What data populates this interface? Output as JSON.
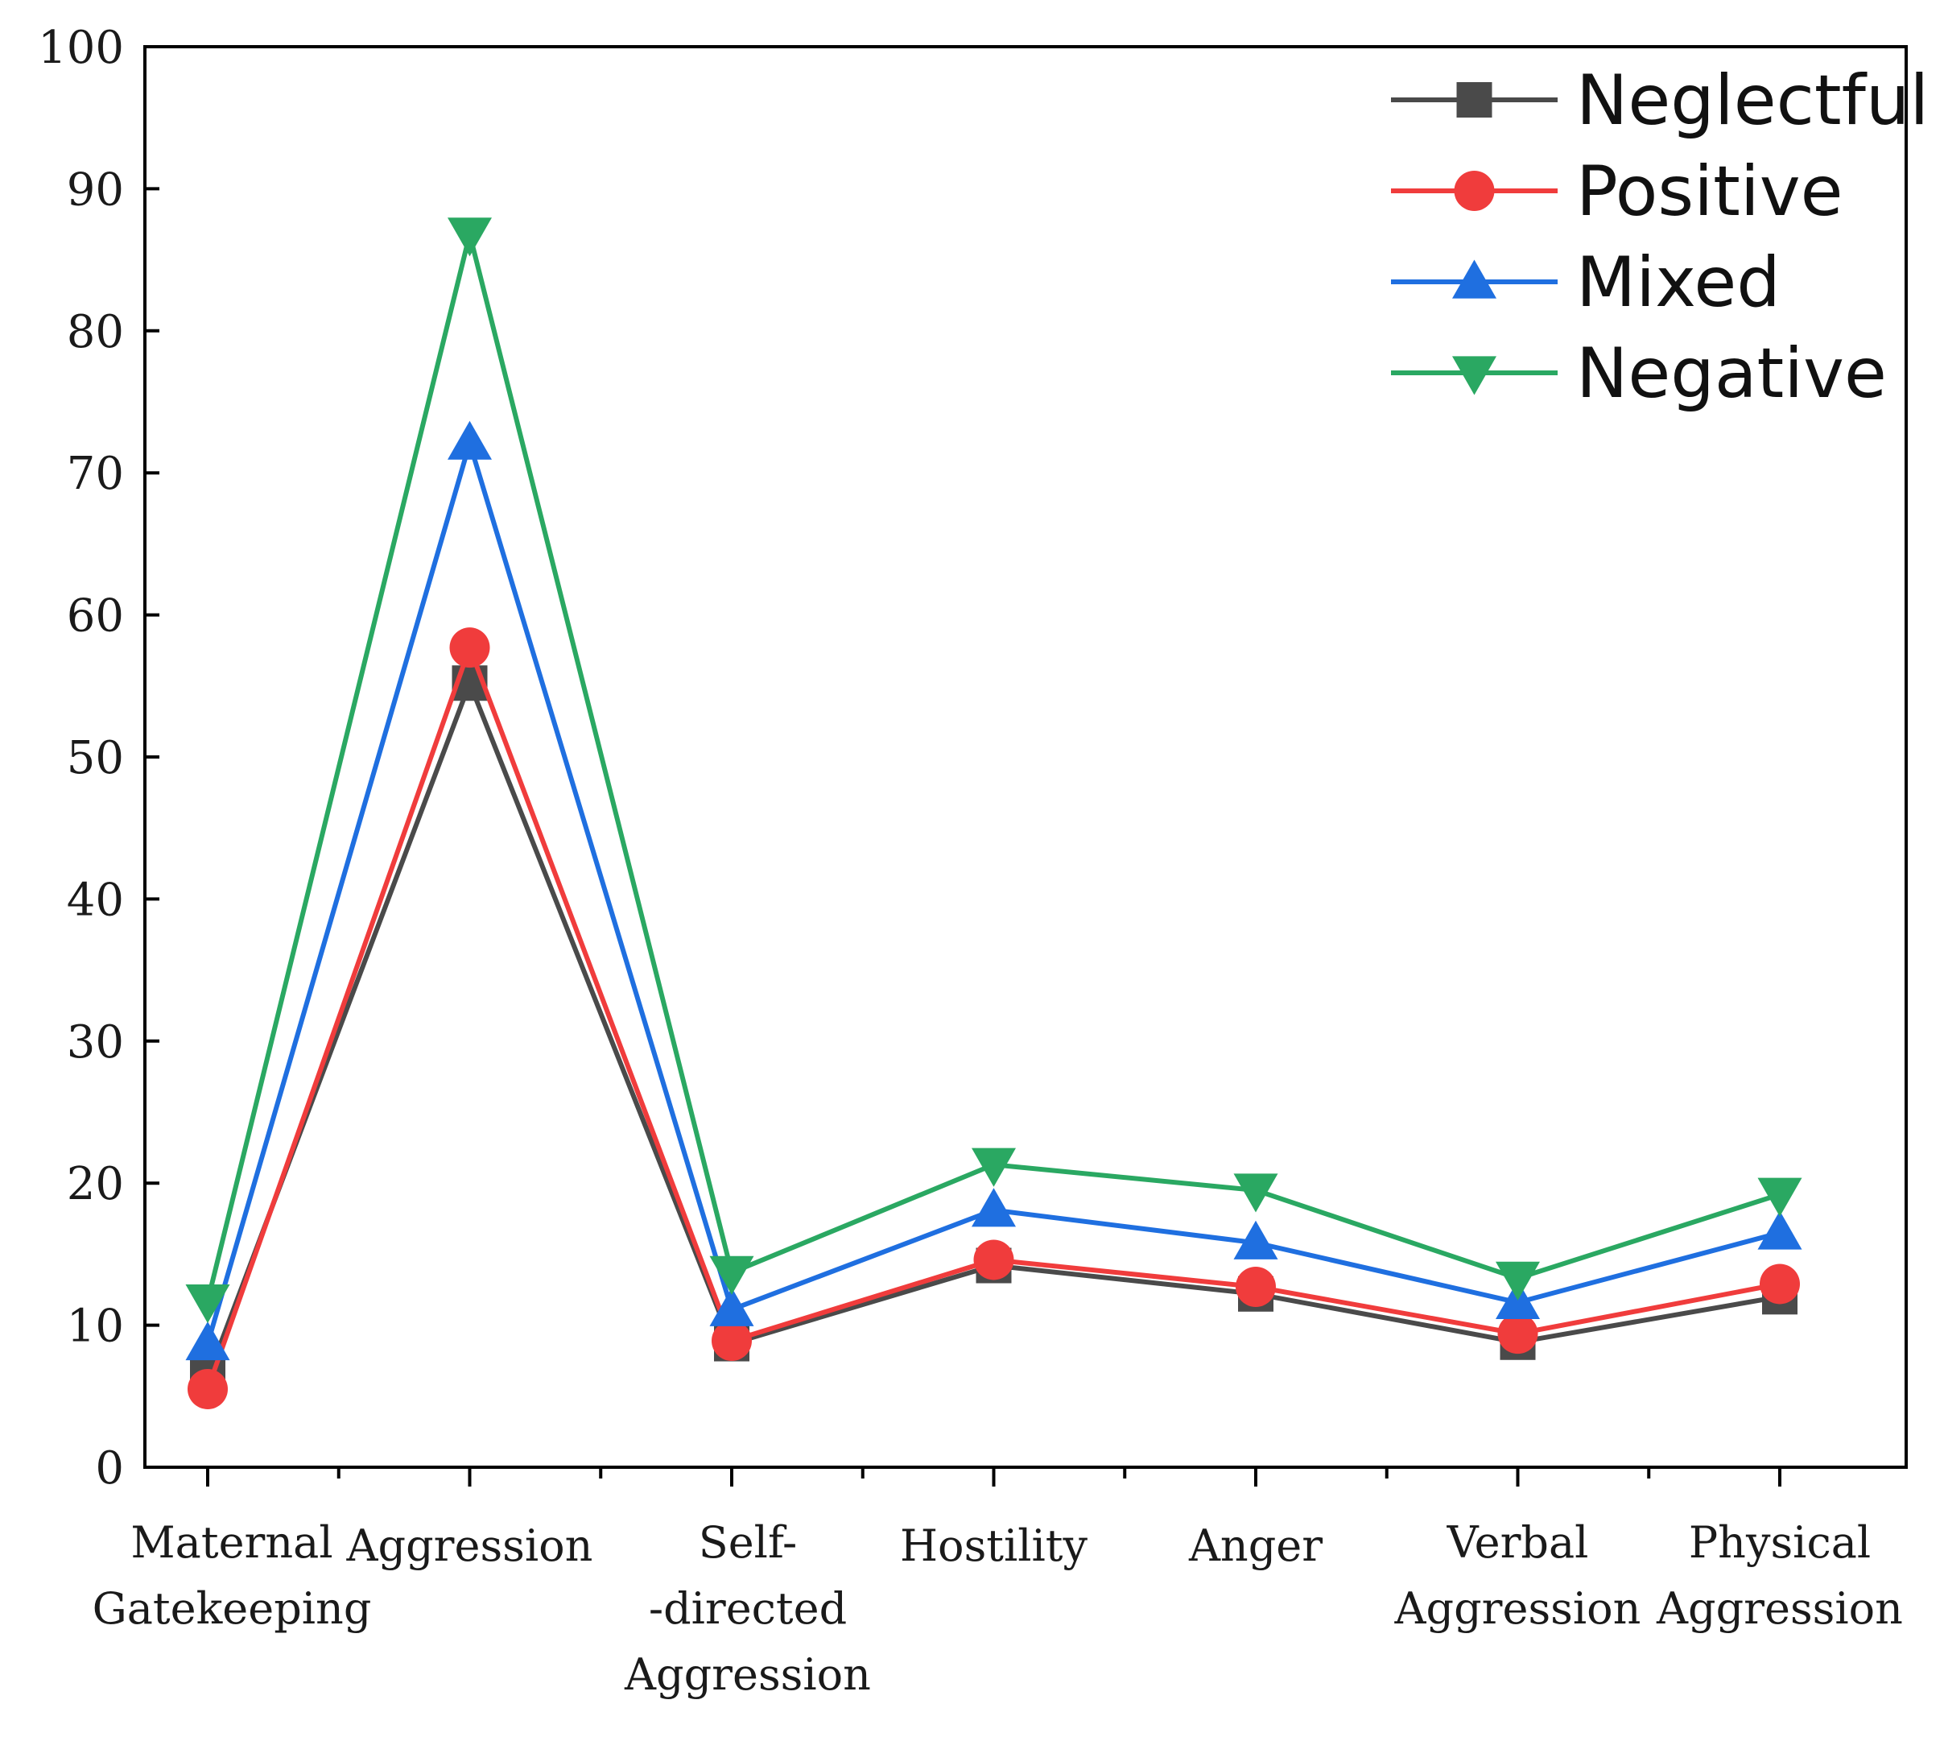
{
  "chart_data": {
    "type": "line",
    "title": "",
    "xlabel": "",
    "ylabel": "",
    "categories": [
      [
        "Maternal",
        "Gatekeeping"
      ],
      [
        "Aggression"
      ],
      [
        "Self-",
        "-directed",
        "Aggression"
      ],
      [
        "Hostility"
      ],
      [
        "Anger"
      ],
      [
        "Verbal",
        "Aggression"
      ],
      [
        "Physical",
        "Aggression"
      ]
    ],
    "ylim": [
      0,
      100
    ],
    "yticks": [
      0,
      10,
      20,
      30,
      40,
      50,
      60,
      70,
      80,
      90,
      100
    ],
    "grid": false,
    "legend_position": "top-right",
    "series": [
      {
        "name": "Neglectful",
        "color": "#4a4a4a",
        "marker": "square",
        "values": [
          6.3,
          55.2,
          8.7,
          14.2,
          12.2,
          8.8,
          12.0
        ]
      },
      {
        "name": "Positive",
        "color": "#f03c3c",
        "marker": "circle",
        "values": [
          5.5,
          57.7,
          8.9,
          14.6,
          12.7,
          9.4,
          12.9
        ]
      },
      {
        "name": "Mixed",
        "color": "#1f6fe0",
        "marker": "triangle-up",
        "values": [
          8.7,
          72.1,
          11.1,
          18.1,
          15.8,
          11.6,
          16.5
        ]
      },
      {
        "name": "Negative",
        "color": "#2aa862",
        "marker": "triangle-down",
        "values": [
          11.7,
          86.8,
          13.7,
          21.3,
          19.5,
          13.3,
          19.2
        ]
      }
    ]
  }
}
